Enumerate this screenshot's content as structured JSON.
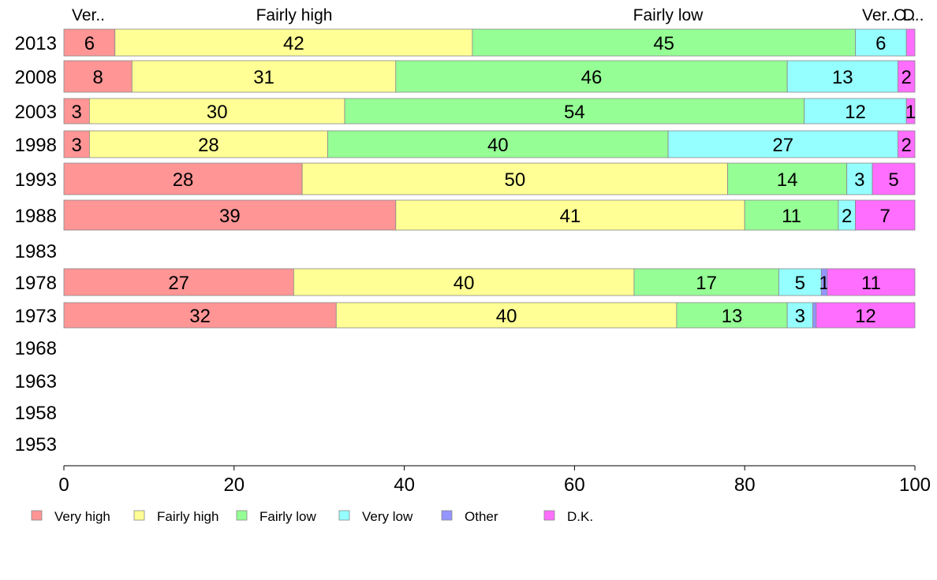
{
  "chart_data": {
    "type": "bar",
    "orientation": "horizontal",
    "stacked": true,
    "xlim": [
      0,
      100
    ],
    "x_ticks": [
      0,
      20,
      40,
      60,
      80,
      100
    ],
    "grid": false,
    "legend_position": "bottom",
    "categories": [
      "2013",
      "2008",
      "2003",
      "1998",
      "1993",
      "1988",
      "1983",
      "1978",
      "1973",
      "1968",
      "1963",
      "1958",
      "1953"
    ],
    "top_labels": [
      "Ver..",
      "Fairly high",
      "Fairly low",
      "Ver..",
      "O..",
      "D.."
    ],
    "series": [
      {
        "name": "Very high",
        "color": "#ff9595",
        "values": [
          6,
          8,
          3,
          3,
          28,
          39,
          null,
          27,
          32,
          null,
          null,
          null,
          null
        ],
        "labels": [
          "6",
          "8",
          "3",
          "3",
          "28",
          "39",
          "",
          "27",
          "32",
          "",
          "",
          "",
          ""
        ]
      },
      {
        "name": "Fairly high",
        "color": "#ffff95",
        "values": [
          42,
          31,
          30,
          28,
          50,
          41,
          null,
          40,
          40,
          null,
          null,
          null,
          null
        ],
        "labels": [
          "42",
          "31",
          "30",
          "28",
          "50",
          "41",
          "",
          "40",
          "40",
          "",
          "",
          "",
          ""
        ]
      },
      {
        "name": "Fairly low",
        "color": "#95ff95",
        "values": [
          45,
          46,
          54,
          40,
          14,
          11,
          null,
          17,
          13,
          null,
          null,
          null,
          null
        ],
        "labels": [
          "45",
          "46",
          "54",
          "40",
          "14",
          "11",
          "",
          "17",
          "13",
          "",
          "",
          "",
          ""
        ]
      },
      {
        "name": "Very low",
        "color": "#95ffff",
        "values": [
          6,
          13,
          12,
          27,
          3,
          2,
          null,
          5,
          3,
          null,
          null,
          null,
          null
        ],
        "labels": [
          "6",
          "13",
          "12",
          "27",
          "3",
          "2",
          "",
          "5",
          "3",
          "",
          "",
          "",
          ""
        ]
      },
      {
        "name": "Other",
        "color": "#9595ff",
        "values": [
          0,
          0,
          0,
          0,
          0,
          0,
          null,
          0.7,
          0.4,
          null,
          null,
          null,
          null
        ],
        "labels": [
          "",
          "",
          "",
          "",
          "",
          "",
          "",
          "1",
          "",
          "",
          "",
          "",
          ""
        ]
      },
      {
        "name": "D.K.",
        "color": "#ff6eff",
        "values": [
          0.5,
          2,
          1,
          2,
          5,
          7,
          null,
          11,
          12,
          null,
          null,
          null,
          null
        ],
        "labels": [
          "",
          "2",
          "1",
          "2",
          "5",
          "7",
          "",
          "11",
          "12",
          "",
          "",
          "",
          ""
        ]
      }
    ]
  }
}
